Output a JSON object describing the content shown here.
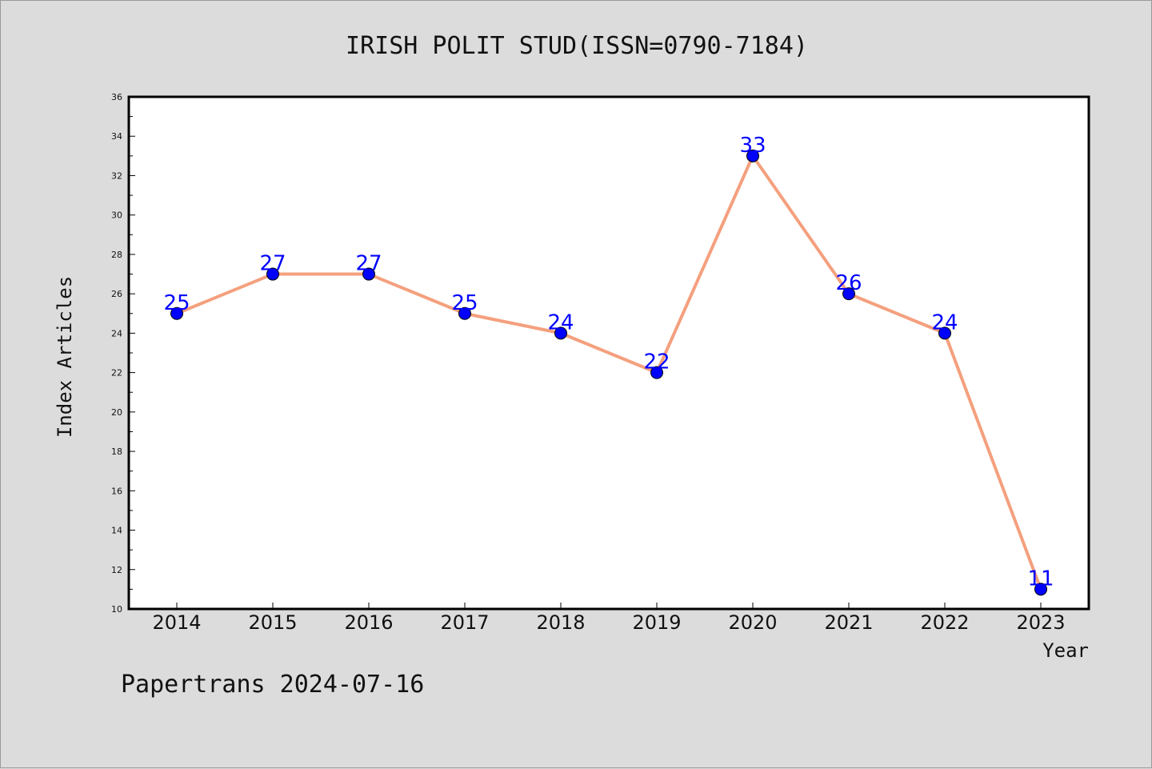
{
  "chart_data": {
    "type": "line",
    "title": "IRISH POLIT STUD(ISSN=0790-7184)",
    "xlabel": "Year",
    "ylabel": "Index Articles",
    "categories": [
      "2014",
      "2015",
      "2016",
      "2017",
      "2018",
      "2019",
      "2020",
      "2021",
      "2022",
      "2023"
    ],
    "series": [
      {
        "values": [
          25,
          27,
          27,
          25,
          24,
          22,
          33,
          26,
          24,
          11
        ]
      }
    ],
    "ylim": [
      10,
      36
    ],
    "yticks": [
      10,
      12,
      14,
      16,
      18,
      20,
      22,
      24,
      26,
      28,
      30,
      32,
      34,
      36
    ],
    "grid": false,
    "line_color": "#f4a07e",
    "marker_color": "#0000ff",
    "label_color": "#0000ff"
  },
  "footer": "Papertrans 2024-07-16"
}
